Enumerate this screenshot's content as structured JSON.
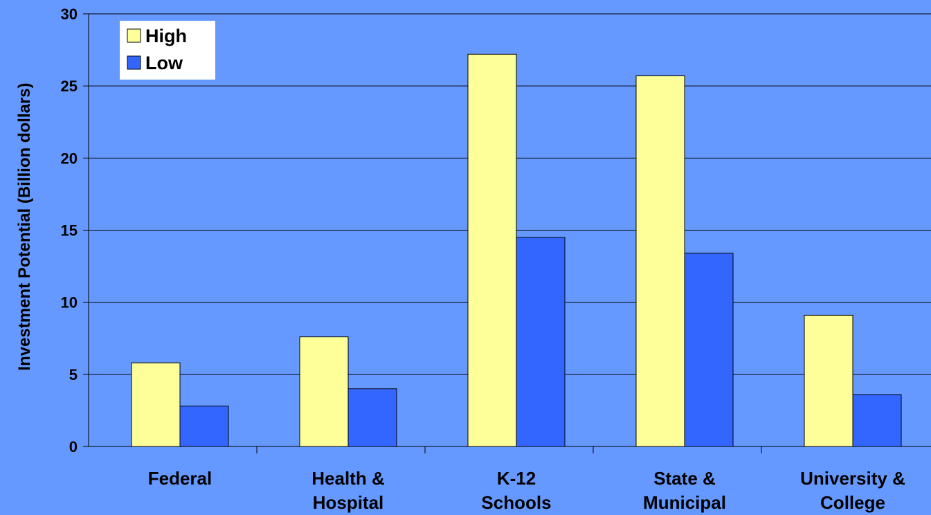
{
  "chart_data": {
    "type": "bar",
    "title": "",
    "xlabel": "",
    "ylabel": "Investment Potential (Billion dollars)",
    "ylim": [
      0,
      30
    ],
    "yticks": [
      "0",
      "5",
      "10",
      "15",
      "20",
      "25",
      "30"
    ],
    "ytick_values": [
      0,
      5,
      10,
      15,
      20,
      25,
      30
    ],
    "grid": true,
    "legend_position": "top-left",
    "categories": [
      [
        "Federal"
      ],
      [
        "Health &",
        "Hospital"
      ],
      [
        "K-12",
        "Schools"
      ],
      [
        "State &",
        "Municipal"
      ],
      [
        "University &",
        "College"
      ]
    ],
    "series": [
      {
        "name": "High",
        "color": "#ffff99",
        "values": [
          5.8,
          7.6,
          27.2,
          25.7,
          9.1
        ]
      },
      {
        "name": "Low",
        "color": "#3366ff",
        "values": [
          2.8,
          4.0,
          14.5,
          13.4,
          3.6
        ]
      }
    ],
    "colors": {
      "background": "#6699ff",
      "plot_area": "#6699ff",
      "gridline": "#000000",
      "legend_background": "#ffffff"
    }
  }
}
